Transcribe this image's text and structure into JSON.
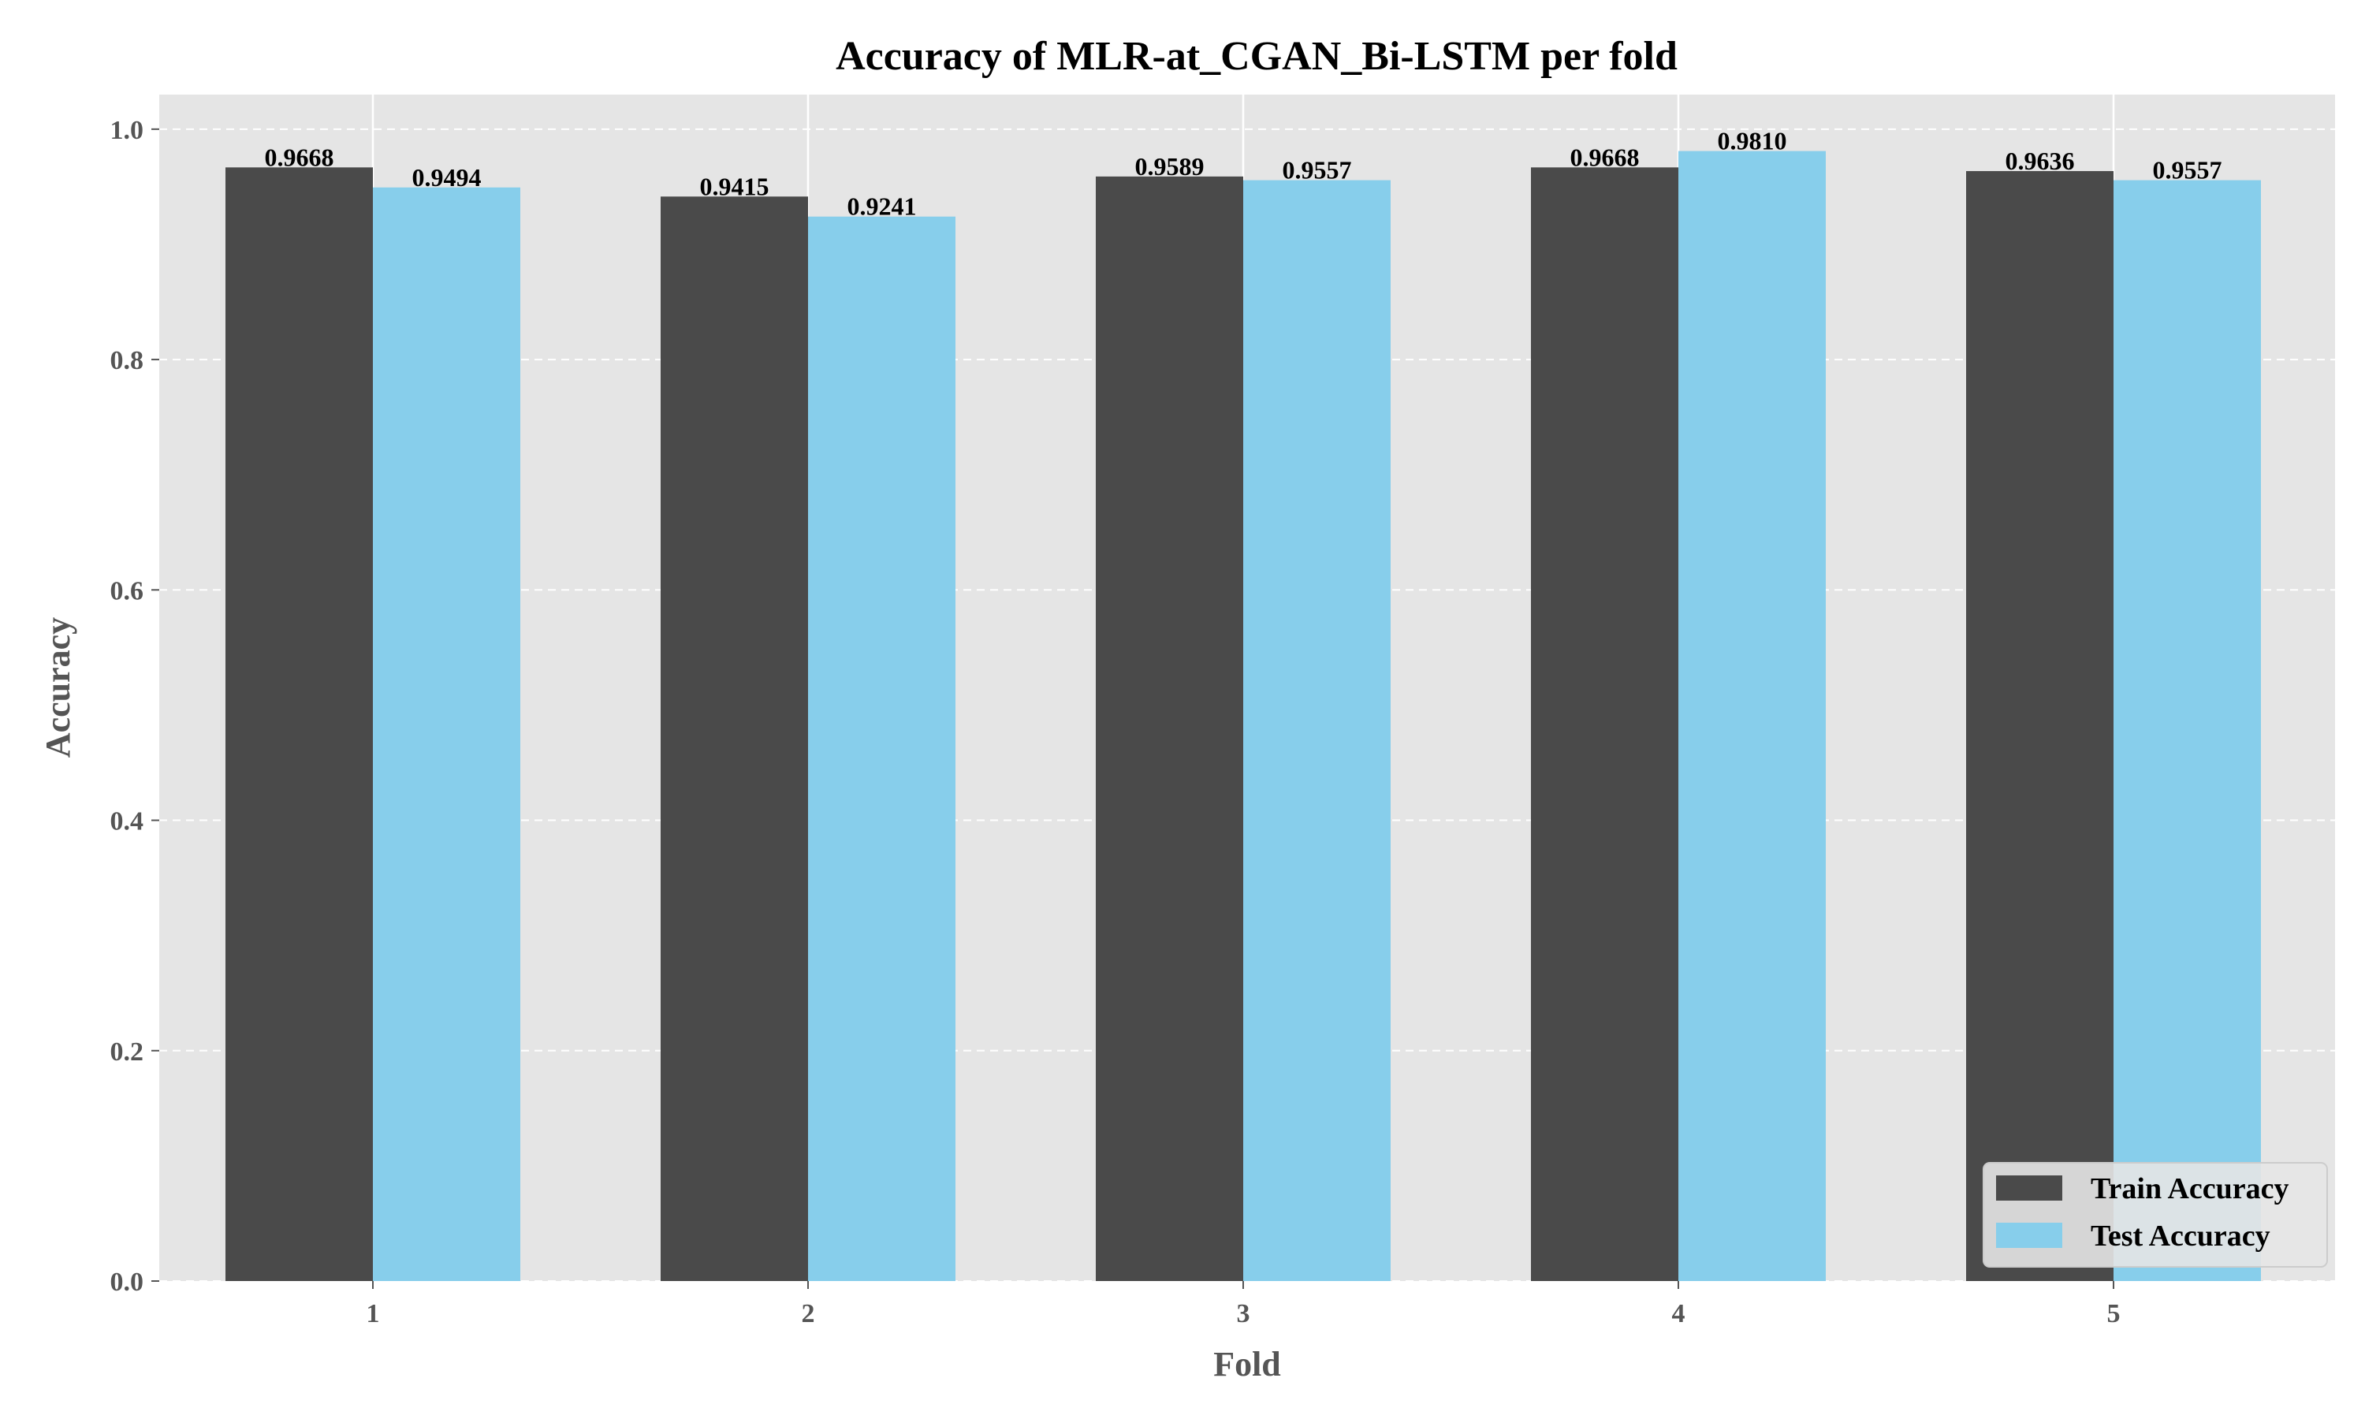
{
  "chart_data": {
    "type": "bar",
    "title": "Accuracy of MLR-at_CGAN_Bi-LSTM per fold",
    "xlabel": "Fold",
    "ylabel": "Accuracy",
    "categories": [
      "1",
      "2",
      "3",
      "4",
      "5"
    ],
    "series": [
      {
        "name": "Train Accuracy",
        "color": "#4a4a4a",
        "values": [
          0.9668,
          0.9415,
          0.9589,
          0.9668,
          0.9636
        ]
      },
      {
        "name": "Test Accuracy",
        "color": "#87ceeb",
        "values": [
          0.9494,
          0.9241,
          0.9557,
          0.981,
          0.9557
        ]
      }
    ],
    "data_labels": [
      [
        "0.9668",
        "0.9415",
        "0.9589",
        "0.9668",
        "0.9636"
      ],
      [
        "0.9494",
        "0.9241",
        "0.9557",
        "0.9810",
        "0.9557"
      ]
    ],
    "ylim": [
      0,
      1.03
    ],
    "yticks": [
      0.0,
      0.2,
      0.4,
      0.6,
      0.8,
      1.0
    ],
    "ytick_labels": [
      "0.0",
      "0.2",
      "0.4",
      "0.6",
      "0.8",
      "1.0"
    ],
    "grid": true,
    "legend_position": "bottom-right",
    "plot_background": "#e5e5e5"
  }
}
